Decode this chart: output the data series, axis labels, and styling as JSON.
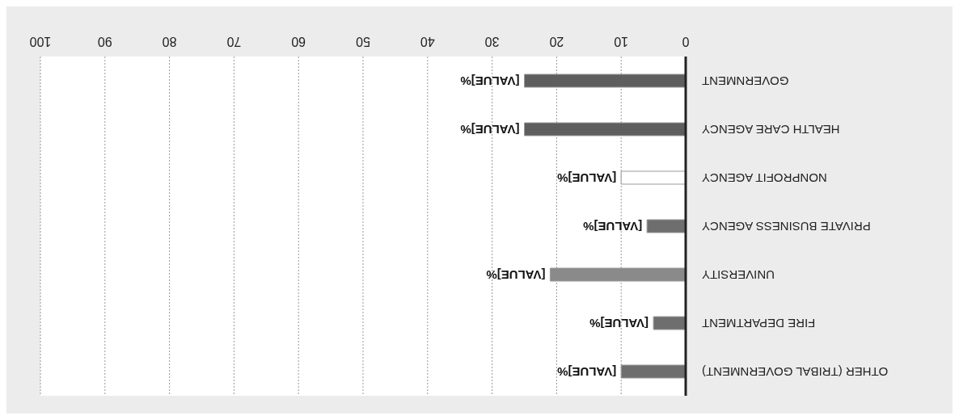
{
  "chart_data": {
    "type": "bar",
    "orientation": "horizontal",
    "categories": [
      "GOVERNMENT",
      "HEALTH CARE AGENCY",
      "NONPROFIT AGENCY",
      "PRIVATE BUSINESS AGENCY",
      "UNIVERSITY",
      "FIRE DEPARTMENT",
      "OTHER (TRIBAL GOVERNMENT)"
    ],
    "values": [
      25,
      25,
      10,
      6,
      21,
      5,
      10
    ],
    "colors": [
      "#5e5e5e",
      "#5e5e5e",
      "#ffffff",
      "#6e6e6e",
      "#8a8a8a",
      "#6e6e6e",
      "#6e6e6e"
    ],
    "value_labels": [
      "[VALUE]%",
      "[VALUE]%",
      "[VALUE]%",
      "[VALUE]%",
      "[VALUE]%",
      "[VALUE]%",
      "[VALUE]%"
    ],
    "xlim": [
      100,
      0
    ],
    "xticks": [
      100,
      90,
      80,
      70,
      60,
      50,
      40,
      30,
      20,
      10,
      0
    ],
    "grid": "x"
  }
}
